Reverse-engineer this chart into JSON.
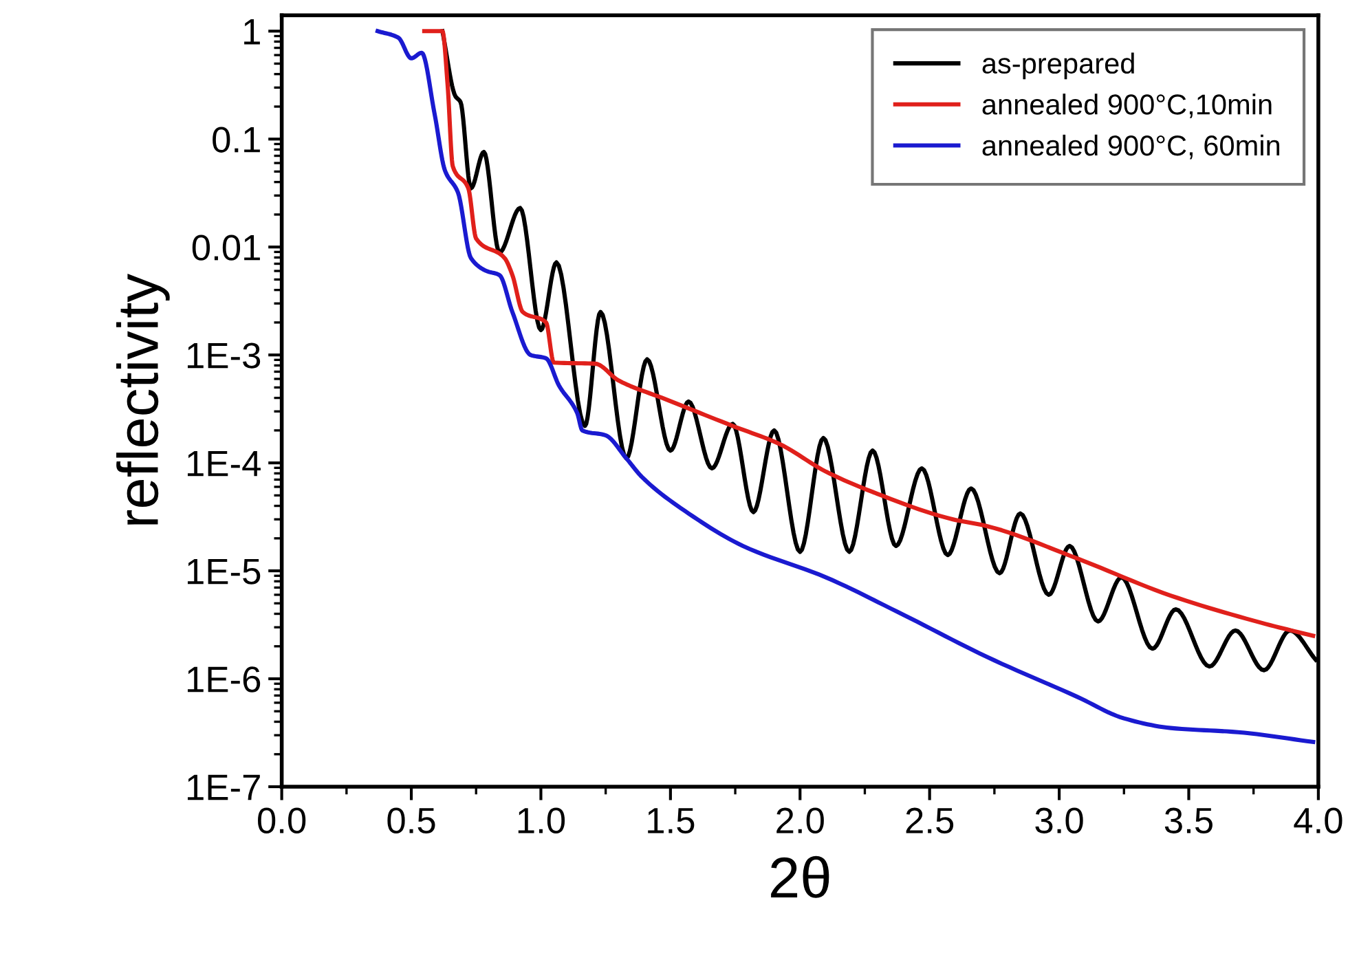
{
  "chart_data": {
    "type": "line",
    "xlabel": "2θ",
    "ylabel": "reflectivity",
    "log": "y",
    "legend": "top right",
    "grid": false,
    "xlim": [
      0,
      4
    ],
    "ylim": [
      1e-07,
      1.4
    ],
    "xticks": [
      {
        "value": 0,
        "label": "0.0"
      },
      {
        "value": 0.5,
        "label": "0.5"
      },
      {
        "value": 1,
        "label": "1.0"
      },
      {
        "value": 1.5,
        "label": "1.5"
      },
      {
        "value": 2,
        "label": "2.0"
      },
      {
        "value": 2.5,
        "label": "2.5"
      },
      {
        "value": 3,
        "label": "3.0"
      },
      {
        "value": 3.5,
        "label": "3.5"
      },
      {
        "value": 4,
        "label": "4.0"
      }
    ],
    "yticks": [
      {
        "value": 1,
        "label": "1"
      },
      {
        "value": 0.1,
        "label": "0.1"
      },
      {
        "value": 0.01,
        "label": "0.01"
      },
      {
        "value": 0.001,
        "label": "1E-3"
      },
      {
        "value": 0.0001,
        "label": "1E-4"
      },
      {
        "value": 1e-05,
        "label": "1E-5"
      },
      {
        "value": 1e-06,
        "label": "1E-6"
      },
      {
        "value": 1e-07,
        "label": "1E-7"
      }
    ],
    "series": [
      {
        "name": "as-prepared",
        "color": "#000000",
        "x": [
          0.62,
          0.67,
          0.69,
          0.73,
          0.78,
          0.84,
          0.92,
          1.0,
          1.06,
          1.17,
          1.23,
          1.33,
          1.41,
          1.5,
          1.57,
          1.66,
          1.74,
          1.82,
          1.9,
          2.0,
          2.09,
          2.19,
          2.28,
          2.37,
          2.47,
          2.57,
          2.66,
          2.77,
          2.85,
          2.96,
          3.04,
          3.15,
          3.24,
          3.36,
          3.45,
          3.58,
          3.68,
          3.79,
          3.89,
          3.99
        ],
        "values": [
          1,
          0.25,
          0.22,
          0.035,
          0.076,
          0.0089,
          0.023,
          0.0017,
          0.0072,
          0.00022,
          0.0025,
          0.00011,
          0.00091,
          0.00013,
          0.00037,
          8.9e-05,
          0.00023,
          3.5e-05,
          0.0002,
          1.5e-05,
          0.00017,
          1.5e-05,
          0.00013,
          1.7e-05,
          8.9e-05,
          1.4e-05,
          5.8e-05,
          9.5e-06,
          3.4e-05,
          6e-06,
          1.7e-05,
          3.4e-06,
          8.7e-06,
          1.9e-06,
          4.4e-06,
          1.3e-06,
          2.8e-06,
          1.2e-06,
          2.8e-06,
          1.5e-06
        ]
      },
      {
        "name": "annealed 900°C,10min",
        "color": "#e0201b",
        "x": [
          0.55,
          0.62,
          0.64,
          0.66,
          0.72,
          0.75,
          0.86,
          0.89,
          0.93,
          1.02,
          1.05,
          1.21,
          1.3,
          1.48,
          1.74,
          1.92,
          2.1,
          2.27,
          2.59,
          2.72,
          3.07,
          3.43,
          3.78,
          3.98
        ],
        "values": [
          1,
          1,
          0.32,
          0.056,
          0.035,
          0.012,
          0.0079,
          0.0055,
          0.0025,
          0.002,
          0.00085,
          0.00083,
          0.00058,
          0.00039,
          0.00022,
          0.00015,
          8.3e-05,
          5.5e-05,
          3e-05,
          2.6e-05,
          1.3e-05,
          5.9e-06,
          3.3e-06,
          2.5e-06
        ]
      },
      {
        "name": "annealed 900°C, 60min",
        "color": "#1a1ad0",
        "x": [
          0.37,
          0.45,
          0.5,
          0.54,
          0.59,
          0.63,
          0.68,
          0.73,
          0.79,
          0.84,
          0.89,
          0.96,
          1.02,
          1.07,
          1.14,
          1.16,
          1.25,
          1.33,
          1.39,
          1.57,
          1.78,
          2.1,
          2.4,
          2.72,
          3.07,
          3.25,
          3.43,
          3.69,
          3.98
        ],
        "values": [
          1,
          0.87,
          0.56,
          0.63,
          0.17,
          0.051,
          0.032,
          0.0079,
          0.006,
          0.0055,
          0.0025,
          0.001,
          0.00093,
          0.00052,
          0.00029,
          0.0002,
          0.00018,
          0.00011,
          7.4e-05,
          3.4e-05,
          1.7e-05,
          8.7e-06,
          3.9e-06,
          1.6e-06,
          6.8e-07,
          4.3e-07,
          3.5e-07,
          3.2e-07,
          2.6e-07
        ]
      }
    ]
  }
}
